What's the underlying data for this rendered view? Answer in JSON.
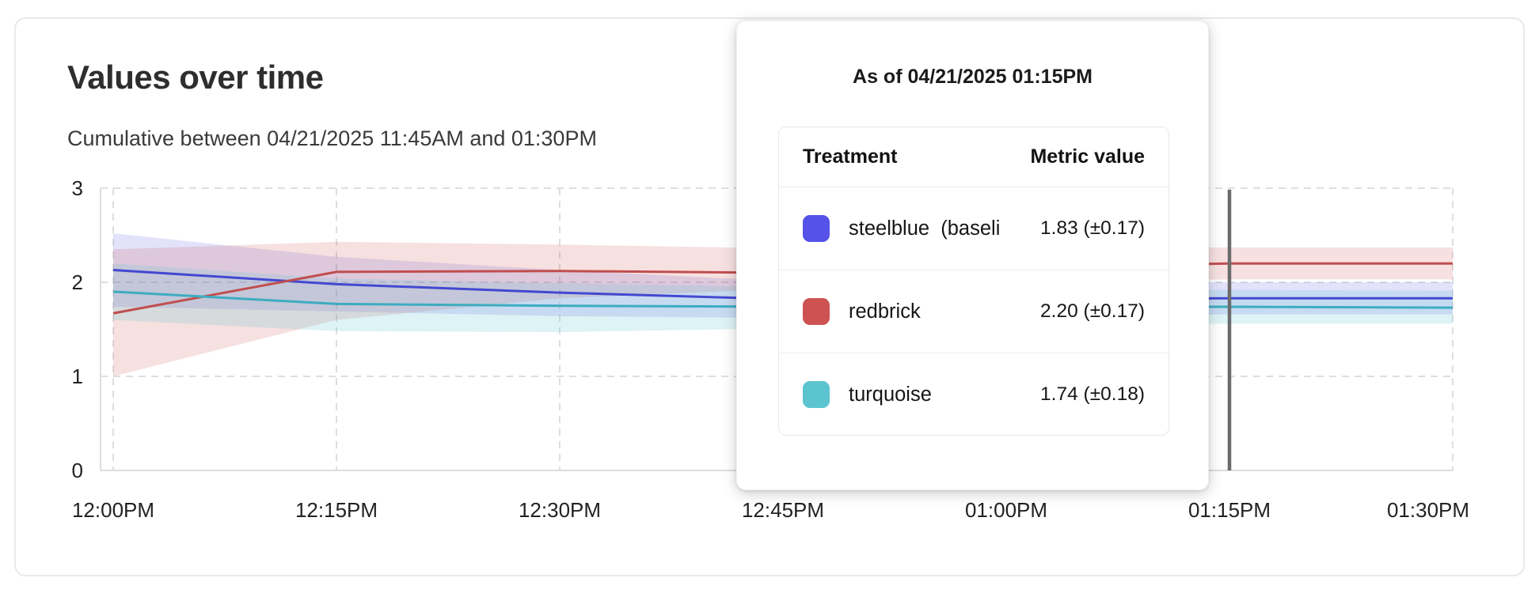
{
  "header": {
    "title": "Values over time",
    "subtitle": "Cumulative between 04/21/2025 11:45AM and 01:30PM"
  },
  "tooltip": {
    "title": "As of 04/21/2025 01:15PM",
    "columns": {
      "treatment": "Treatment",
      "metric": "Metric value"
    },
    "rows": [
      {
        "swatch_color": "#5552e8",
        "label": "steelblue  (baseli",
        "value": "1.83 (±0.17)"
      },
      {
        "swatch_color": "#cd5353",
        "label": "redbrick",
        "value": "2.20 (±0.17)"
      },
      {
        "swatch_color": "#5bc4cf",
        "label": "turquoise",
        "value": "1.74 (±0.18)"
      }
    ]
  },
  "chart_data": {
    "type": "line",
    "title": "Values over time",
    "subtitle": "Cumulative between 04/21/2025 11:45AM and 01:30PM",
    "x_ticklabels": [
      "12:00PM",
      "12:15PM",
      "12:30PM",
      "12:45PM",
      "01:00PM",
      "01:15PM",
      "01:30PM"
    ],
    "y_ticklabels": [
      "3",
      "2",
      "1",
      "0"
    ],
    "ylim": [
      0,
      3
    ],
    "grid": "dashed",
    "legend_position": "none",
    "cursor_x": "01:15PM",
    "cursor_color": "#6b6b6b",
    "series": [
      {
        "name": "steelblue (baseline)",
        "line_color": "#4448d0",
        "band_color": "rgba(85,82,232,0.17)",
        "values": [
          2.13,
          1.98,
          1.89,
          1.82,
          1.82,
          1.83,
          1.83
        ],
        "upper": [
          2.52,
          2.27,
          2.13,
          2.01,
          2.0,
          2.0,
          2.0
        ],
        "lower": [
          1.74,
          1.69,
          1.64,
          1.62,
          1.64,
          1.66,
          1.66
        ]
      },
      {
        "name": "redbrick",
        "line_color": "#c04e4e",
        "band_color": "rgba(205,83,83,0.18)",
        "values": [
          1.67,
          2.11,
          2.12,
          2.1,
          2.15,
          2.2,
          2.2
        ],
        "upper": [
          2.35,
          2.43,
          2.4,
          2.36,
          2.37,
          2.37,
          2.37
        ],
        "lower": [
          1.0,
          1.6,
          1.83,
          1.93,
          2.0,
          2.03,
          2.03
        ]
      },
      {
        "name": "turquoise",
        "line_color": "#3eacc0",
        "band_color": "rgba(91,196,207,0.20)",
        "values": [
          1.9,
          1.77,
          1.75,
          1.74,
          1.74,
          1.74,
          1.73
        ],
        "upper": [
          2.2,
          2.04,
          1.99,
          1.95,
          1.93,
          1.92,
          1.91
        ],
        "lower": [
          1.6,
          1.48,
          1.47,
          1.51,
          1.54,
          1.56,
          1.56
        ]
      }
    ]
  }
}
